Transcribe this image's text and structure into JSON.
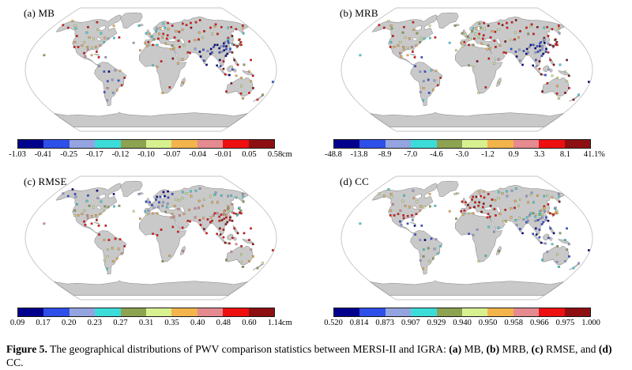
{
  "figure": {
    "palette": [
      "#00008c",
      "#2e4fe8",
      "#94a4e0",
      "#3cdcd9",
      "#8da352",
      "#d9f091",
      "#f4b44c",
      "#e58a90",
      "#ee1010",
      "#8e0f12"
    ],
    "map_colors": {
      "land": "#c9c9c9",
      "land_outline": "#565656",
      "border": "#c3c3c3",
      "ocean": "#ffffff",
      "dot_outline": "#3a3a3a"
    },
    "panels": [
      {
        "title": "(a) MB",
        "unit": "cm",
        "ticks": [
          "-1.03",
          "-0.41",
          "-0.25",
          "-0.17",
          "-0.12",
          "-0.10",
          "-0.07",
          "-0.04",
          "-0.01",
          "0.05",
          "0.58"
        ],
        "dots": "868538688656756873256388536386876822102681218627123638648632638686486388688868898688858868893883688685685868201001201010201218388483901020102103108480810980168946889658689648168368963668636248"
      },
      {
        "title": "(b) MRB",
        "unit": "%",
        "ticks": [
          "-48.8",
          "-13.8",
          "-8.9",
          "-7.0",
          "-4.6",
          "-3.0",
          "-1.2",
          "0.9",
          "3.3",
          "8.1",
          "41.1"
        ],
        "dots": "858648386656657864365488645385766811213682128616234548658543648586485489688858988588948858983882689586686878102012102020102129298492812011021012019891920891259835998568598539058469854558545339"
      },
      {
        "title": "(c) RMSE",
        "unit": "cm",
        "ticks": [
          "0.09",
          "0.17",
          "0.20",
          "0.23",
          "0.27",
          "0.31",
          "0.35",
          "0.40",
          "0.48",
          "0.60",
          "1.14"
        ],
        "dots": "201123456657766865454310234340888888688886657665531112322110102234621001567553563635265632372334326776776888789886888688898766788438997898768964573849898898879888947855466754856678888846726578"
      },
      {
        "title": "(d) CC",
        "unit": "",
        "ticks": [
          "0.520",
          "0.814",
          "0.873",
          "0.907",
          "0.929",
          "0.940",
          "0.950",
          "0.958",
          "0.966",
          "0.975",
          "1.000"
        ],
        "dots": "536657688878888286566532656436121011201232433454268898889888989889898668898653623625362352683569328685886536621035212323512658686326012312352136248650101102130143232452321423065682321253454631"
      }
    ],
    "stations": [
      [
        -165,
        65
      ],
      [
        -156,
        71
      ],
      [
        -150,
        61
      ],
      [
        -141,
        64
      ],
      [
        -135,
        60
      ],
      [
        -123,
        49
      ],
      [
        -120,
        40
      ],
      [
        -117,
        33
      ],
      [
        -111,
        33
      ],
      [
        -106,
        35
      ],
      [
        -105,
        40
      ],
      [
        -97,
        33
      ],
      [
        -95,
        29
      ],
      [
        -90,
        32
      ],
      [
        -84,
        33
      ],
      [
        -81,
        26
      ],
      [
        -78,
        35
      ],
      [
        -74,
        40
      ],
      [
        -69,
        45
      ],
      [
        -93,
        45
      ],
      [
        -101,
        47
      ],
      [
        -110,
        54
      ],
      [
        -115,
        62
      ],
      [
        -105,
        69
      ],
      [
        -94,
        58
      ],
      [
        -85,
        53
      ],
      [
        -75,
        46
      ],
      [
        -60,
        46
      ],
      [
        -52,
        47
      ],
      [
        -69,
        64
      ],
      [
        -99,
        24
      ],
      [
        -96,
        19
      ],
      [
        -87,
        21
      ],
      [
        -76,
        18
      ],
      [
        -66,
        18
      ],
      [
        -74,
        5
      ],
      [
        -67,
        -3
      ],
      [
        -60,
        -3
      ],
      [
        -51,
        -1
      ],
      [
        -44,
        -2
      ],
      [
        -38,
        -12
      ],
      [
        -47,
        -16
      ],
      [
        -56,
        -15
      ],
      [
        -63,
        -17
      ],
      [
        -43,
        -23
      ],
      [
        -51,
        -30
      ],
      [
        -58,
        -34
      ],
      [
        -65,
        -27
      ],
      [
        -71,
        -33
      ],
      [
        -71,
        -45
      ],
      [
        -8,
        53
      ],
      [
        -2,
        52
      ],
      [
        2,
        48
      ],
      [
        -4,
        40
      ],
      [
        -9,
        39
      ],
      [
        5,
        44
      ],
      [
        12,
        45
      ],
      [
        14,
        52
      ],
      [
        9,
        56
      ],
      [
        11,
        60
      ],
      [
        17,
        60
      ],
      [
        25,
        61
      ],
      [
        21,
        52
      ],
      [
        19,
        47
      ],
      [
        26,
        45
      ],
      [
        23,
        38
      ],
      [
        33,
        35
      ],
      [
        28,
        50
      ],
      [
        31,
        59
      ],
      [
        24,
        67
      ],
      [
        33,
        68
      ],
      [
        40,
        64
      ],
      [
        44,
        56
      ],
      [
        39,
        47
      ],
      [
        44,
        42
      ],
      [
        49,
        55
      ],
      [
        56,
        58
      ],
      [
        61,
        67
      ],
      [
        67,
        65
      ],
      [
        73,
        61
      ],
      [
        77,
        68
      ],
      [
        83,
        54
      ],
      [
        88,
        69
      ],
      [
        93,
        56
      ],
      [
        99,
        72
      ],
      [
        104,
        52
      ],
      [
        108,
        61
      ],
      [
        113,
        52
      ],
      [
        118,
        63
      ],
      [
        123,
        66
      ],
      [
        129,
        62
      ],
      [
        135,
        49
      ],
      [
        140,
        61
      ],
      [
        147,
        62
      ],
      [
        152,
        59
      ],
      [
        158,
        53
      ],
      [
        166,
        60
      ],
      [
        171,
        64
      ],
      [
        61,
        41
      ],
      [
        71,
        43
      ],
      [
        77,
        44
      ],
      [
        85,
        47
      ],
      [
        35,
        31
      ],
      [
        44,
        33
      ],
      [
        51,
        35
      ],
      [
        55,
        25
      ],
      [
        46,
        15
      ],
      [
        58,
        24
      ],
      [
        67,
        30
      ],
      [
        73,
        19
      ],
      [
        77,
        13
      ],
      [
        80,
        7
      ],
      [
        73,
        26
      ],
      [
        79,
        29
      ],
      [
        85,
        27
      ],
      [
        88,
        23
      ],
      [
        91,
        25
      ],
      [
        91,
        30
      ],
      [
        102,
        25
      ],
      [
        104,
        31
      ],
      [
        108,
        34
      ],
      [
        113,
        23
      ],
      [
        114,
        30
      ],
      [
        117,
        40
      ],
      [
        123,
        42
      ],
      [
        126,
        46
      ],
      [
        127,
        37
      ],
      [
        129,
        36
      ],
      [
        140,
        36
      ],
      [
        141,
        43
      ],
      [
        143,
        44
      ],
      [
        132,
        35
      ],
      [
        121,
        25
      ],
      [
        110,
        20
      ],
      [
        96,
        33
      ],
      [
        99,
        36
      ],
      [
        106,
        26
      ],
      [
        110,
        28
      ],
      [
        112,
        34
      ],
      [
        116,
        34
      ],
      [
        118,
        26
      ],
      [
        120,
        30
      ],
      [
        114,
        38
      ],
      [
        125,
        44
      ],
      [
        122,
        39
      ],
      [
        103,
        36
      ],
      [
        133,
        34
      ],
      [
        138,
        37
      ],
      [
        142,
        40
      ],
      [
        100,
        14
      ],
      [
        105,
        12
      ],
      [
        100,
        5
      ],
      [
        95,
        6
      ],
      [
        104,
        1
      ],
      [
        107,
        -7
      ],
      [
        113,
        -8
      ],
      [
        117,
        0
      ],
      [
        123,
        -9
      ],
      [
        125,
        7
      ],
      [
        121,
        14
      ],
      [
        134,
        7
      ],
      [
        141,
        -3
      ],
      [
        147,
        -9
      ],
      [
        115,
        -32
      ],
      [
        118,
        -20
      ],
      [
        131,
        -12
      ],
      [
        134,
        -24
      ],
      [
        139,
        -35
      ],
      [
        147,
        -42
      ],
      [
        151,
        -34
      ],
      [
        153,
        -27
      ],
      [
        146,
        -17
      ],
      [
        174,
        -37
      ],
      [
        172,
        -44
      ],
      [
        178,
        -18
      ],
      [
        -6,
        34
      ],
      [
        3,
        36
      ],
      [
        10,
        36
      ],
      [
        31,
        30
      ],
      [
        15,
        12
      ],
      [
        32,
        16
      ],
      [
        39,
        9
      ],
      [
        3,
        6
      ],
      [
        9,
        4
      ],
      [
        18,
        -34
      ],
      [
        28,
        -26
      ],
      [
        47,
        -19
      ],
      [
        -22,
        64
      ],
      [
        -16,
        28
      ],
      [
        -27,
        39
      ],
      [
        -157,
        21
      ],
      [
        145,
        14
      ]
    ],
    "caption": [
      {
        "t": "Figure 5.",
        "b": true
      },
      {
        "t": " The geographical distributions of PWV comparison statistics between MERSI-II and IGRA: ",
        "b": false
      },
      {
        "t": "(a)",
        "b": true
      },
      {
        "t": " MB, ",
        "b": false
      },
      {
        "t": "(b)",
        "b": true
      },
      {
        "t": " MRB, ",
        "b": false
      },
      {
        "t": "(c)",
        "b": true
      },
      {
        "t": " RMSE, and ",
        "b": false
      },
      {
        "t": "(d)",
        "b": true
      },
      {
        "t": " CC.",
        "b": false
      }
    ]
  }
}
